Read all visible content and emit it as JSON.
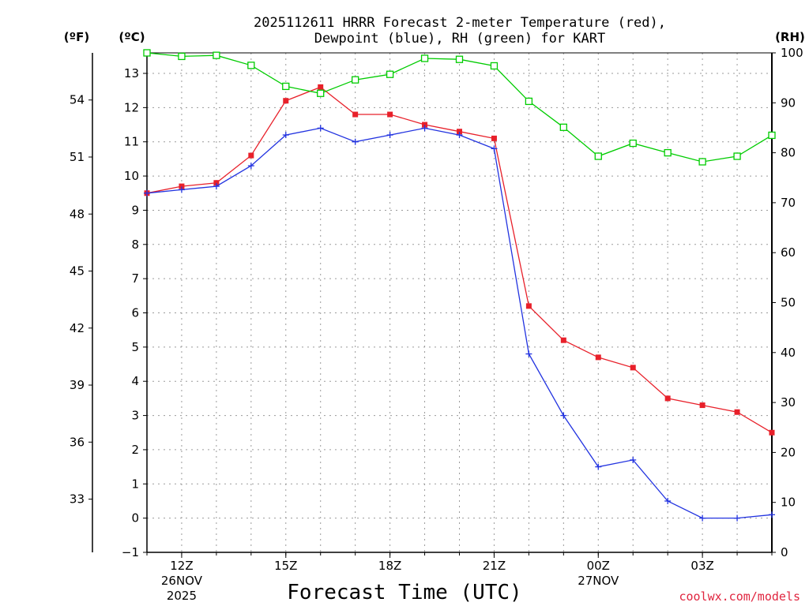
{
  "chart_data": {
    "type": "line",
    "title_line1": "2025112611 HRRR Forecast 2-meter Temperature (red),",
    "title_line2": "Dewpoint (blue), RH (green) for KART",
    "xlabel": "Forecast Time (UTC)",
    "credit": "coolwx.com/models",
    "units": {
      "fahrenheit": "(ºF)",
      "celsius": "(ºC)",
      "rh": "(RH)"
    },
    "x_hours": [
      11,
      12,
      13,
      14,
      15,
      16,
      17,
      18,
      19,
      20,
      21,
      22,
      23,
      24,
      25,
      26,
      27,
      28,
      29
    ],
    "xlim": [
      11,
      29
    ],
    "x_ticks": [
      {
        "hour": 12,
        "label": "12Z",
        "sub1": "26NOV",
        "sub2": "2025"
      },
      {
        "hour": 15,
        "label": "15Z",
        "sub1": "",
        "sub2": ""
      },
      {
        "hour": 18,
        "label": "18Z",
        "sub1": "",
        "sub2": ""
      },
      {
        "hour": 21,
        "label": "21Z",
        "sub1": "",
        "sub2": ""
      },
      {
        "hour": 24,
        "label": "00Z",
        "sub1": "27NOV",
        "sub2": ""
      },
      {
        "hour": 27,
        "label": "03Z",
        "sub1": "",
        "sub2": ""
      }
    ],
    "ylim_c": [
      -1,
      13.6
    ],
    "y_ticks_c": [
      -1,
      0,
      1,
      2,
      3,
      4,
      5,
      6,
      7,
      8,
      9,
      10,
      11,
      12,
      13
    ],
    "y_ticks_f": [
      33,
      36,
      39,
      42,
      45,
      48,
      51,
      54
    ],
    "ylim_rh": [
      0,
      100
    ],
    "y_ticks_rh": [
      0,
      10,
      20,
      30,
      40,
      50,
      60,
      70,
      80,
      90,
      100
    ],
    "series": [
      {
        "name": "Temperature",
        "axis": "c",
        "color": "#e8202a",
        "marker": "filled-square",
        "values": [
          9.5,
          9.7,
          9.8,
          10.6,
          12.2,
          12.6,
          11.8,
          11.8,
          11.5,
          11.3,
          11.1,
          6.2,
          5.2,
          4.7,
          4.4,
          3.5,
          3.3,
          3.1,
          2.5
        ]
      },
      {
        "name": "Dewpoint",
        "axis": "c",
        "color": "#2233e0",
        "marker": "plus",
        "values": [
          9.5,
          9.6,
          9.7,
          10.3,
          11.2,
          11.4,
          11.0,
          11.2,
          11.4,
          11.2,
          10.8,
          4.8,
          3.0,
          1.5,
          1.7,
          0.5,
          0.0,
          0.0,
          0.1
        ]
      },
      {
        "name": "RH",
        "axis": "rh",
        "color": "#00cc00",
        "marker": "open-square",
        "values": [
          100,
          99.3,
          99.5,
          97.5,
          93.3,
          91.9,
          94.6,
          95.7,
          98.9,
          98.7,
          97.4,
          90.3,
          85.1,
          79.3,
          81.9,
          80.0,
          78.2,
          79.3,
          83.5
        ]
      }
    ]
  }
}
